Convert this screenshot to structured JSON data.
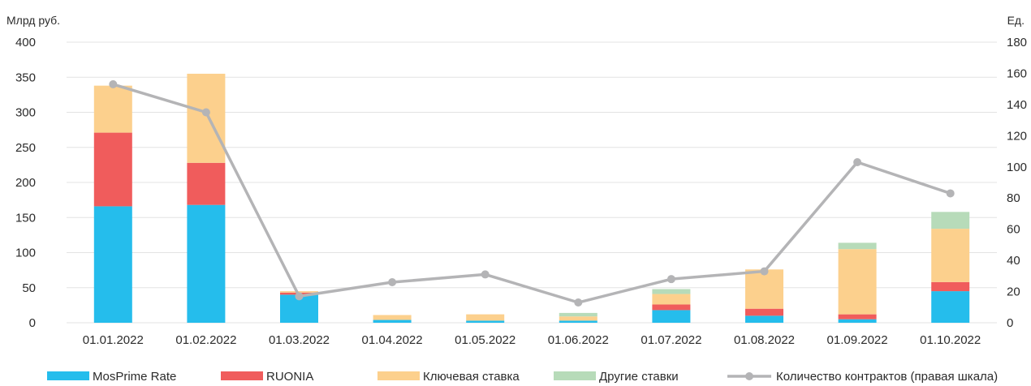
{
  "chart_data": {
    "type": "bar",
    "stacked": true,
    "categories": [
      "01.01.2022",
      "01.02.2022",
      "01.03.2022",
      "01.04.2022",
      "01.05.2022",
      "01.06.2022",
      "01.07.2022",
      "01.08.2022",
      "01.09.2022",
      "01.10.2022"
    ],
    "ylabel": "Млрд руб.",
    "y2label": "Ед.",
    "ylim": [
      0,
      400
    ],
    "yticks": [
      0,
      50,
      100,
      150,
      200,
      250,
      300,
      350,
      400
    ],
    "y2lim": [
      0,
      180
    ],
    "y2ticks": [
      0,
      20,
      40,
      60,
      80,
      100,
      120,
      140,
      160,
      180
    ],
    "grid": true,
    "legend_position": "bottom",
    "series": [
      {
        "name": "MosPrime Rate",
        "type": "bar",
        "axis": "left",
        "color": "#25bdec",
        "values": [
          166,
          168,
          40,
          4,
          3,
          3,
          18,
          10,
          5,
          45
        ]
      },
      {
        "name": "RUONIA",
        "type": "bar",
        "axis": "left",
        "color": "#f05c5c",
        "values": [
          105,
          60,
          3,
          0,
          0,
          0,
          8,
          10,
          7,
          13
        ]
      },
      {
        "name": "Ключевая ставка",
        "type": "bar",
        "axis": "left",
        "color": "#fcd08d",
        "values": [
          67,
          127,
          2,
          7,
          9,
          6,
          15,
          56,
          93,
          76
        ]
      },
      {
        "name": "Другие ставки",
        "type": "bar",
        "axis": "left",
        "color": "#b7dbb9",
        "values": [
          0,
          0,
          0,
          0,
          0,
          5,
          7,
          0,
          9,
          24
        ]
      },
      {
        "name": "Количество контрактов (правая шкала)",
        "type": "line",
        "axis": "right",
        "color": "#b4b4b6",
        "values": [
          153,
          135,
          17,
          26,
          31,
          13,
          28,
          33,
          103,
          83
        ]
      }
    ]
  }
}
